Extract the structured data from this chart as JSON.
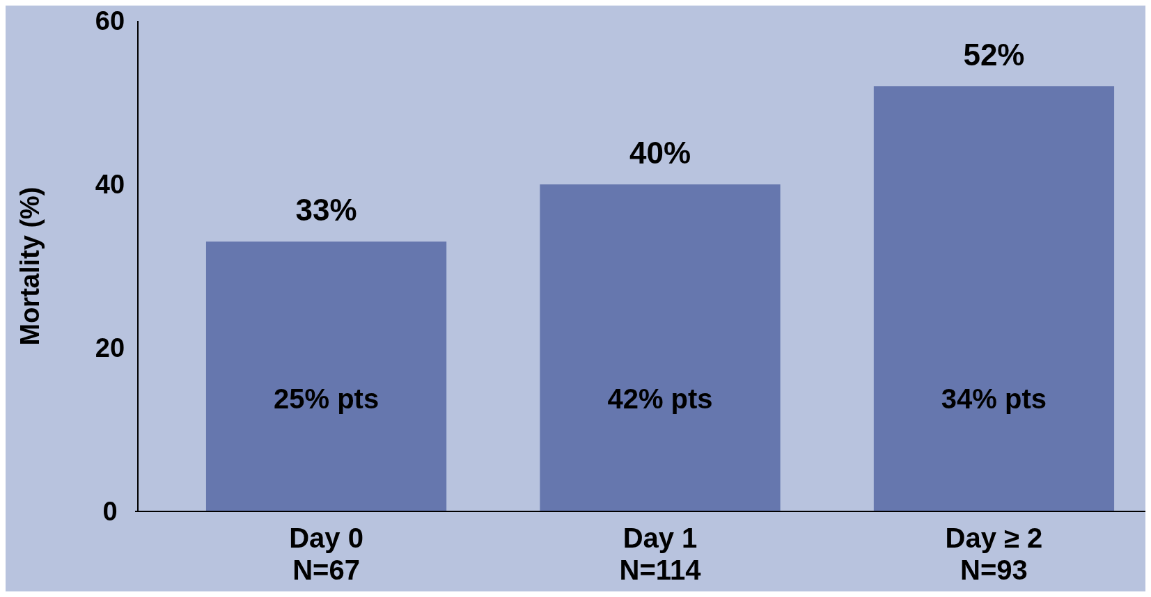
{
  "chart_data": {
    "type": "bar",
    "ylabel": "Mortality (%)",
    "categories": [
      "Day 0\nN=67",
      "Day 1\nN=114",
      "Day ≥ 2\nN=93"
    ],
    "values": [
      33,
      40,
      52
    ],
    "color": "#6677ae",
    "value_labels": [
      "33%",
      "40%",
      "52%"
    ],
    "ylim": [
      0,
      60
    ],
    "yticks": [
      0,
      20,
      40,
      60
    ],
    "grid": false,
    "annotations": [
      "25% pts",
      "42% pts",
      "34% pts"
    ]
  }
}
